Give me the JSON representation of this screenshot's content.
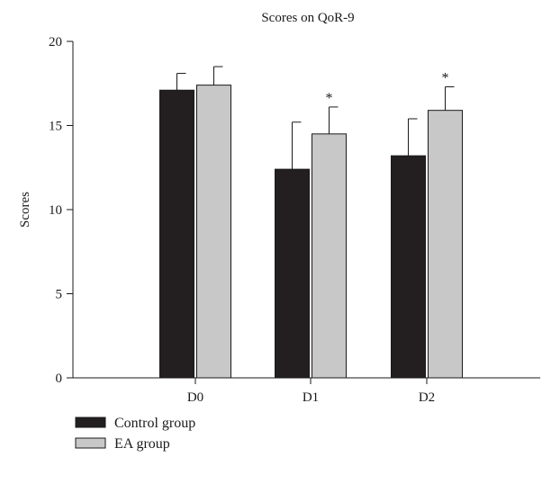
{
  "chart_data": {
    "type": "bar",
    "title": "Scores on QoR-9",
    "xlabel": "",
    "ylabel": "Scores",
    "ylim": [
      0,
      20
    ],
    "yticks": [
      0,
      5,
      10,
      15,
      20
    ],
    "grid": false,
    "legend_position": "bottom-left",
    "categories": [
      "D0",
      "D1",
      "D2"
    ],
    "series": [
      {
        "name": "Control group",
        "color": "#231f20",
        "values": [
          17.1,
          12.4,
          13.2
        ],
        "errors": [
          1.0,
          2.8,
          2.2
        ],
        "markers": [
          "",
          "",
          ""
        ]
      },
      {
        "name": "EA group",
        "color": "#c8c8c8",
        "values": [
          17.4,
          14.5,
          15.9
        ],
        "errors": [
          1.1,
          1.6,
          1.4
        ],
        "markers": [
          "",
          "*",
          "*"
        ]
      }
    ]
  }
}
